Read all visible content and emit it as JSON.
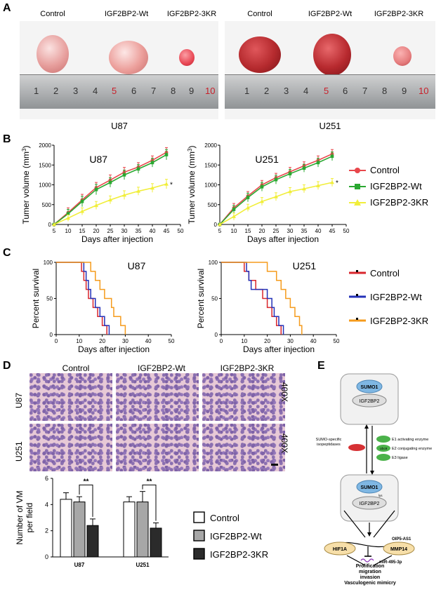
{
  "panels": {
    "A": "A",
    "B": "B",
    "C": "C",
    "D": "D",
    "E": "E"
  },
  "photo": {
    "groups": [
      "Control",
      "IGF2BP2-Wt",
      "IGF2BP2-3KR"
    ],
    "cells": [
      "U87",
      "U251"
    ],
    "ruler_numbers": [
      "1",
      "2",
      "3",
      "4",
      "5",
      "6",
      "7",
      "8",
      "9",
      "10"
    ],
    "colors": {
      "tumor_u87": "#e9a9a6",
      "tumor_u251": "#b52a2e",
      "ruler": "#a5a8aa"
    }
  },
  "tumor_chart": {
    "ylabel": "Tumer volume (mm",
    "ylabel_sup": "3",
    "ylabel_end": ")",
    "xlabel": "Days after injection",
    "star": "*",
    "x_ticks": [
      "5",
      "10",
      "15",
      "20",
      "25",
      "30",
      "35",
      "40",
      "45",
      "50"
    ],
    "y_ticks": [
      "0",
      "500",
      "1000",
      "1500",
      "2000"
    ],
    "legend": [
      "Control",
      "IGF2BP2-Wt",
      "IGF2BP2-3KR"
    ],
    "colors": [
      "#e8474c",
      "#2aa831",
      "#f1ee3a"
    ]
  },
  "survival_chart": {
    "ylabel": "Percent survival",
    "xlabel": "Days after injection",
    "x_ticks": [
      "0",
      "10",
      "20",
      "30",
      "40",
      "50"
    ],
    "y_ticks": [
      "0",
      "50",
      "100"
    ],
    "legend": [
      "Control",
      "IGF2BP2-Wt",
      "IGF2BP2-3KR"
    ],
    "colors": [
      "#d9262c",
      "#2331b8",
      "#f59b1c"
    ]
  },
  "histology": {
    "columns": [
      "Control",
      "IGF2BP2-Wt",
      "IGF2BP2-3KR"
    ],
    "rows": [
      "U87",
      "U251"
    ],
    "magnification": "400X"
  },
  "vm_chart": {
    "ylabel_1": "Number of VM",
    "ylabel_2": "per field",
    "y_ticks": [
      "0",
      "2",
      "4",
      "6"
    ],
    "sig": "**",
    "legend": [
      "Control",
      "IGF2BP2-Wt",
      "IGF2BP2-3KR"
    ],
    "colors": [
      "#ffffff",
      "#a7a7a7",
      "#2b2b2b"
    ]
  },
  "pathway": {
    "sumo1": "SUMO1",
    "igf2bp2": "IGF2BP2",
    "senp_label_1": "SUMO-specific",
    "senp_label_2": "isopeptidases",
    "e1": "E1 activating enzyme",
    "e2": "E2 conjugating enzyme",
    "e3": "E3 ligase",
    "ubc9": "Ubc9",
    "lys": "lys",
    "oip5": "OIP5-AS1",
    "mir": "miR-495-3p",
    "hif1a": "HIF1A",
    "mmp14": "MMP14",
    "out1": "Prolification",
    "out2": "migration",
    "out3": "invasion",
    "out4": "Vasculogenic mimicry"
  },
  "chart_data": [
    {
      "type": "line",
      "panel": "B",
      "title": "U87",
      "xlabel": "Days after injection",
      "ylabel": "Tumer volume (mm3)",
      "xlim": [
        5,
        50
      ],
      "ylim": [
        0,
        2000
      ],
      "x": [
        5,
        10,
        15,
        20,
        25,
        30,
        35,
        40,
        45
      ],
      "series": [
        {
          "name": "Control",
          "values": [
            0,
            300,
            620,
            930,
            1120,
            1320,
            1450,
            1620,
            1820
          ],
          "err": [
            0,
            120,
            140,
            130,
            130,
            120,
            110,
            110,
            120
          ]
        },
        {
          "name": "IGF2BP2-Wt",
          "values": [
            0,
            270,
            580,
            880,
            1060,
            1250,
            1400,
            1560,
            1760
          ],
          "err": [
            0,
            110,
            130,
            130,
            120,
            120,
            110,
            110,
            130
          ]
        },
        {
          "name": "IGF2BP2-3KR",
          "values": [
            0,
            160,
            330,
            480,
            620,
            740,
            840,
            920,
            1020
          ],
          "err": [
            0,
            80,
            90,
            100,
            100,
            110,
            100,
            110,
            120
          ]
        }
      ],
      "annotation": "*"
    },
    {
      "type": "line",
      "panel": "B",
      "title": "U251",
      "xlabel": "Days after injection",
      "ylabel": "Tumer volume (mm3)",
      "xlim": [
        5,
        50
      ],
      "ylim": [
        0,
        2000
      ],
      "x": [
        5,
        10,
        15,
        20,
        25,
        30,
        35,
        40,
        45
      ],
      "series": [
        {
          "name": "Control",
          "values": [
            0,
            420,
            720,
            1000,
            1180,
            1330,
            1480,
            1620,
            1780
          ],
          "err": [
            0,
            110,
            110,
            110,
            110,
            110,
            100,
            110,
            110
          ]
        },
        {
          "name": "IGF2BP2-Wt",
          "values": [
            0,
            380,
            680,
            950,
            1130,
            1280,
            1420,
            1560,
            1720
          ],
          "err": [
            0,
            100,
            110,
            110,
            110,
            110,
            100,
            110,
            110
          ]
        },
        {
          "name": "IGF2BP2-3KR",
          "values": [
            0,
            200,
            420,
            580,
            700,
            830,
            900,
            980,
            1060
          ],
          "err": [
            0,
            90,
            90,
            100,
            100,
            100,
            100,
            100,
            100
          ]
        }
      ],
      "annotation": "*"
    },
    {
      "type": "line",
      "subtype": "survival-step",
      "panel": "C",
      "title": "U87",
      "xlabel": "Days after injection",
      "ylabel": "Percent survival",
      "xlim": [
        0,
        50
      ],
      "ylim": [
        0,
        100
      ],
      "series": [
        {
          "name": "Control",
          "steps": [
            [
              0,
              100
            ],
            [
              11,
              100
            ],
            [
              11,
              87.5
            ],
            [
              12,
              87.5
            ],
            [
              12,
              75
            ],
            [
              13,
              75
            ],
            [
              13,
              62.5
            ],
            [
              14,
              62.5
            ],
            [
              14,
              50
            ],
            [
              16,
              50
            ],
            [
              16,
              37.5
            ],
            [
              18,
              37.5
            ],
            [
              18,
              25
            ],
            [
              20,
              25
            ],
            [
              20,
              12.5
            ],
            [
              22,
              12.5
            ],
            [
              22,
              0
            ]
          ]
        },
        {
          "name": "IGF2BP2-Wt",
          "steps": [
            [
              0,
              100
            ],
            [
              12,
              100
            ],
            [
              12,
              87.5
            ],
            [
              13,
              87.5
            ],
            [
              13,
              75
            ],
            [
              14,
              75
            ],
            [
              14,
              62.5
            ],
            [
              15,
              62.5
            ],
            [
              15,
              50
            ],
            [
              17,
              50
            ],
            [
              17,
              37.5
            ],
            [
              19,
              37.5
            ],
            [
              19,
              25
            ],
            [
              21,
              25
            ],
            [
              21,
              12.5
            ],
            [
              23,
              12.5
            ],
            [
              23,
              0
            ]
          ]
        },
        {
          "name": "IGF2BP2-3KR",
          "steps": [
            [
              0,
              100
            ],
            [
              15,
              100
            ],
            [
              15,
              87.5
            ],
            [
              17,
              87.5
            ],
            [
              17,
              75
            ],
            [
              19,
              75
            ],
            [
              19,
              62.5
            ],
            [
              21,
              62.5
            ],
            [
              21,
              50
            ],
            [
              24,
              50
            ],
            [
              24,
              37.5
            ],
            [
              25,
              37.5
            ],
            [
              25,
              25
            ],
            [
              28,
              25
            ],
            [
              28,
              12.5
            ],
            [
              30,
              12.5
            ],
            [
              30,
              0
            ]
          ]
        }
      ]
    },
    {
      "type": "line",
      "subtype": "survival-step",
      "panel": "C",
      "title": "U251",
      "xlabel": "Days after injection",
      "ylabel": "Percent survival",
      "xlim": [
        0,
        50
      ],
      "ylim": [
        0,
        100
      ],
      "series": [
        {
          "name": "Control",
          "steps": [
            [
              0,
              100
            ],
            [
              10,
              100
            ],
            [
              10,
              87.5
            ],
            [
              12,
              87.5
            ],
            [
              12,
              75
            ],
            [
              15,
              75
            ],
            [
              15,
              62.5
            ],
            [
              18,
              62.5
            ],
            [
              18,
              50
            ],
            [
              20,
              50
            ],
            [
              20,
              37.5
            ],
            [
              22,
              37.5
            ],
            [
              22,
              25
            ],
            [
              24,
              25
            ],
            [
              24,
              12.5
            ],
            [
              26,
              12.5
            ],
            [
              26,
              0
            ]
          ]
        },
        {
          "name": "IGF2BP2-Wt",
          "steps": [
            [
              0,
              100
            ],
            [
              11,
              100
            ],
            [
              11,
              87.5
            ],
            [
              12,
              87.5
            ],
            [
              12,
              75
            ],
            [
              13,
              75
            ],
            [
              13,
              62.5
            ],
            [
              20,
              62.5
            ],
            [
              20,
              50
            ],
            [
              22,
              50
            ],
            [
              22,
              37.5
            ],
            [
              23,
              37.5
            ],
            [
              23,
              25
            ],
            [
              25,
              25
            ],
            [
              25,
              12.5
            ],
            [
              27,
              12.5
            ],
            [
              27,
              0
            ]
          ]
        },
        {
          "name": "IGF2BP2-3KR",
          "steps": [
            [
              0,
              100
            ],
            [
              20,
              100
            ],
            [
              20,
              87.5
            ],
            [
              24,
              87.5
            ],
            [
              24,
              75
            ],
            [
              26,
              75
            ],
            [
              26,
              62.5
            ],
            [
              28,
              62.5
            ],
            [
              28,
              50
            ],
            [
              30,
              50
            ],
            [
              30,
              37.5
            ],
            [
              32,
              37.5
            ],
            [
              32,
              25
            ],
            [
              34,
              25
            ],
            [
              34,
              12.5
            ],
            [
              35,
              12.5
            ],
            [
              35,
              0
            ]
          ]
        }
      ]
    },
    {
      "type": "bar",
      "panel": "D",
      "categories": [
        "U87",
        "U251"
      ],
      "ylabel": "Number of VM per field",
      "ylim": [
        0,
        6
      ],
      "series": [
        {
          "name": "Control",
          "values": [
            4.4,
            4.2
          ],
          "err": [
            0.5,
            0.4
          ]
        },
        {
          "name": "IGF2BP2-Wt",
          "values": [
            4.2,
            4.2
          ],
          "err": [
            0.4,
            0.8
          ]
        },
        {
          "name": "IGF2BP2-3KR",
          "values": [
            2.4,
            2.2
          ],
          "err": [
            0.5,
            0.4
          ]
        }
      ],
      "annotations": [
        "**",
        "**"
      ]
    }
  ]
}
